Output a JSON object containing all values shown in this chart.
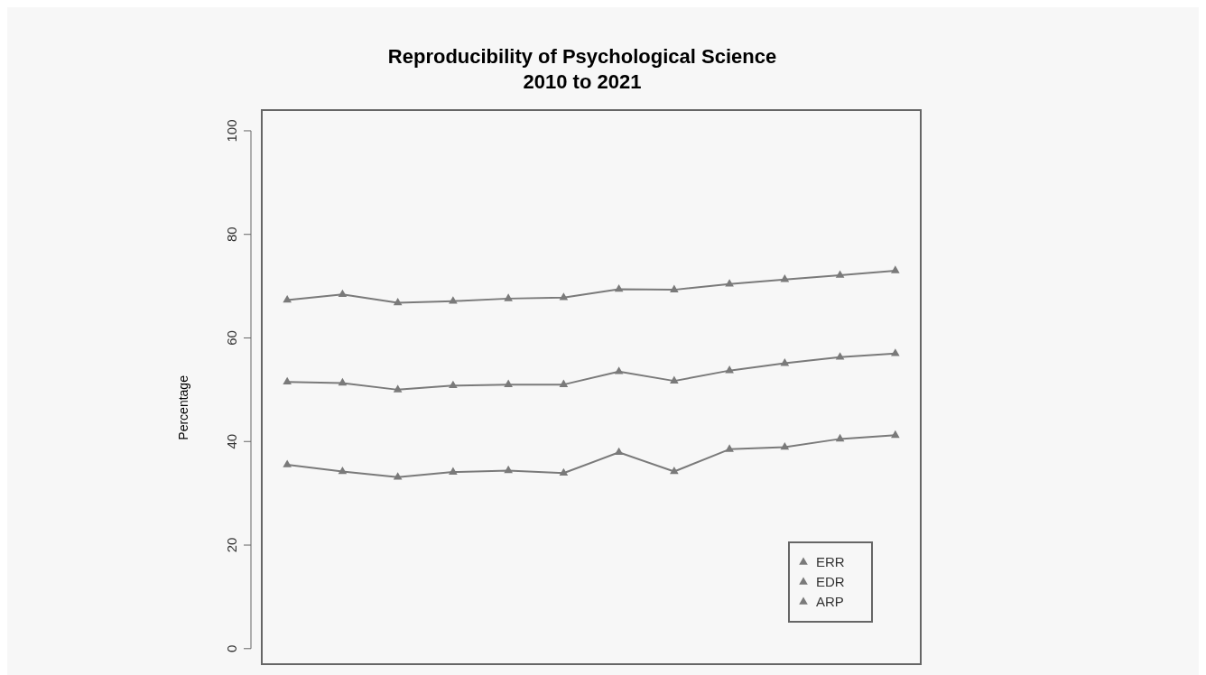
{
  "chart_data": {
    "type": "line",
    "title": "Reproducibility of Psychological Science",
    "subtitle": "2010 to 2021",
    "ylabel": "Percentage",
    "categories": [
      null,
      null,
      null,
      null,
      null,
      null,
      null,
      null,
      null,
      null,
      null,
      null
    ],
    "series": [
      {
        "name": "ERR",
        "color": "#7a7a7a",
        "values": [
          67.3,
          68.4,
          66.8,
          67.1,
          67.6,
          67.8,
          69.4,
          69.3,
          70.4,
          71.3,
          72.1,
          73.0
        ]
      },
      {
        "name": "EDR",
        "color": "#7a7a7a",
        "values": [
          51.5,
          51.3,
          50.0,
          50.8,
          51.0,
          51.0,
          53.5,
          51.7,
          53.7,
          55.1,
          56.3,
          57.0
        ]
      },
      {
        "name": "ARP",
        "color": "#7a7a7a",
        "values": [
          35.5,
          34.2,
          33.1,
          34.1,
          34.4,
          33.9,
          37.9,
          34.2,
          38.5,
          38.9,
          40.5,
          41.2
        ]
      }
    ],
    "ylim": [
      -3,
      104
    ],
    "yticks": [
      0,
      20,
      40,
      60,
      80,
      100
    ],
    "tick_labels": "y",
    "grid": false,
    "legend": "bottom right",
    "marker": "triangle",
    "line_style": "solid"
  }
}
